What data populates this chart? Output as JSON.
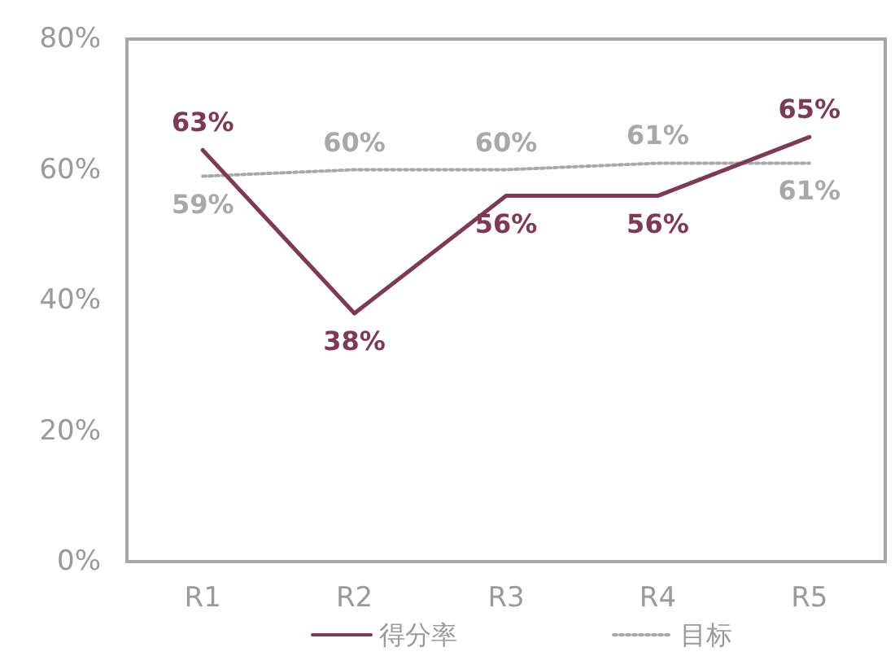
{
  "chart_data": {
    "type": "line",
    "categories": [
      "R1",
      "R2",
      "R3",
      "R4",
      "R5"
    ],
    "series": [
      {
        "name": "得分率",
        "color": "#7d3a58",
        "line_style": "solid",
        "values": [
          63,
          38,
          56,
          56,
          65
        ],
        "value_labels": [
          "63%",
          "38%",
          "56%",
          "56%",
          "65%"
        ]
      },
      {
        "name": "目标",
        "color": "#a8a8a8",
        "line_style": "dotted",
        "values": [
          59,
          60,
          60,
          61,
          61
        ],
        "value_labels": [
          "59%",
          "60%",
          "60%",
          "61%",
          "61%"
        ]
      }
    ],
    "ylim": [
      0,
      80
    ],
    "yticks": [
      {
        "value": 0,
        "label": "0%"
      },
      {
        "value": 20,
        "label": "20%"
      },
      {
        "value": 40,
        "label": "40%"
      },
      {
        "value": 60,
        "label": "60%"
      },
      {
        "value": 80,
        "label": "80%"
      }
    ],
    "grid": false,
    "legend": "bottom",
    "marker": "none"
  }
}
